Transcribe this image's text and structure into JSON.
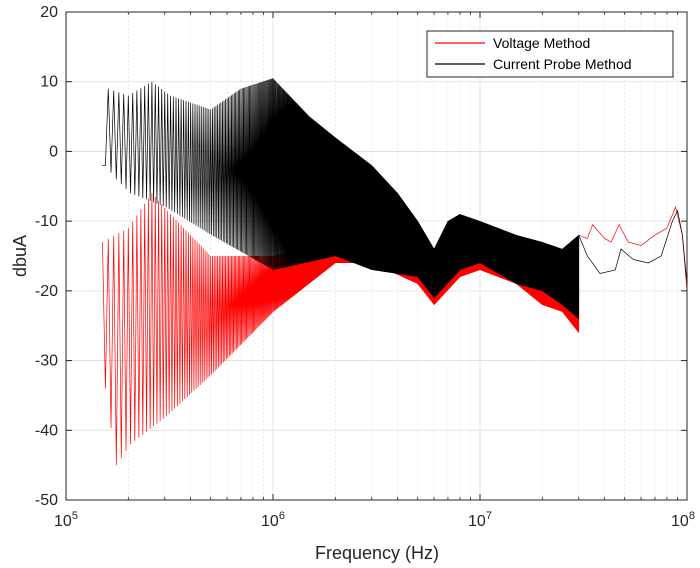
{
  "chart_data": {
    "type": "line",
    "title": "",
    "xlabel": "Frequency (Hz)",
    "ylabel": "dbuA",
    "xscale": "log",
    "xlim": [
      100000,
      100000000
    ],
    "ylim": [
      -50,
      20
    ],
    "grid": true,
    "legend_position": "top-right",
    "x_ticks": [
      {
        "value": 100000,
        "base": "10",
        "exp": "5"
      },
      {
        "value": 1000000,
        "base": "10",
        "exp": "6"
      },
      {
        "value": 10000000,
        "base": "10",
        "exp": "7"
      },
      {
        "value": 100000000,
        "base": "10",
        "exp": "8"
      }
    ],
    "y_ticks": [
      {
        "value": 20,
        "label": "20"
      },
      {
        "value": 10,
        "label": "10"
      },
      {
        "value": 0,
        "label": "0"
      },
      {
        "value": -10,
        "label": "-10"
      },
      {
        "value": -20,
        "label": "-20"
      },
      {
        "value": -30,
        "label": "-30"
      },
      {
        "value": -40,
        "label": "-40"
      },
      {
        "value": -50,
        "label": "-50"
      }
    ],
    "series": [
      {
        "name": "Voltage Method",
        "color": "#ff0000",
        "harmonic_start_hz": 150000,
        "harmonic_step_hz": 10000,
        "harmonic_end_hz": 30000000,
        "peaks": [
          [
            150000,
            -13
          ],
          [
            200000,
            -11
          ],
          [
            260000,
            -6
          ],
          [
            320000,
            -9
          ],
          [
            500000,
            -15
          ],
          [
            1000000,
            -15
          ],
          [
            2000000,
            -13
          ],
          [
            2500000,
            -13
          ],
          [
            3500000,
            -14
          ],
          [
            5000000,
            -17
          ],
          [
            6000000,
            -19
          ],
          [
            8000000,
            -15
          ],
          [
            10000000,
            -15
          ],
          [
            15000000,
            -16
          ],
          [
            20000000,
            -17
          ],
          [
            25000000,
            -18
          ],
          [
            30000000,
            -21
          ]
        ],
        "floor": [
          [
            150000,
            -34
          ],
          [
            170000,
            -45
          ],
          [
            200000,
            -42
          ],
          [
            300000,
            -38
          ],
          [
            500000,
            -32
          ],
          [
            1000000,
            -23
          ],
          [
            2000000,
            -16
          ],
          [
            3000000,
            -16
          ],
          [
            5000000,
            -19
          ],
          [
            6000000,
            -22
          ],
          [
            8000000,
            -18
          ],
          [
            10000000,
            -17
          ],
          [
            15000000,
            -19
          ],
          [
            20000000,
            -22
          ],
          [
            25000000,
            -23
          ],
          [
            30000000,
            -26
          ]
        ],
        "smooth": [
          [
            30000000,
            -12
          ],
          [
            33000000,
            -12.5
          ],
          [
            35000000,
            -10.5
          ],
          [
            40000000,
            -12.5
          ],
          [
            43000000,
            -13
          ],
          [
            47000000,
            -10.5
          ],
          [
            52000000,
            -13
          ],
          [
            60000000,
            -13.5
          ],
          [
            70000000,
            -12
          ],
          [
            80000000,
            -11
          ],
          [
            88000000,
            -8
          ],
          [
            95000000,
            -12
          ],
          [
            100000000,
            -20
          ]
        ]
      },
      {
        "name": "Current Probe Method",
        "color": "#000000",
        "harmonic_start_hz": 150000,
        "harmonic_step_hz": 10000,
        "harmonic_end_hz": 30000000,
        "peaks": [
          [
            150000,
            -2
          ],
          [
            160000,
            9
          ],
          [
            200000,
            8
          ],
          [
            260000,
            10
          ],
          [
            320000,
            8
          ],
          [
            500000,
            6
          ],
          [
            700000,
            9
          ],
          [
            1000000,
            10.5
          ],
          [
            1500000,
            5
          ],
          [
            2000000,
            2
          ],
          [
            3000000,
            -2
          ],
          [
            4000000,
            -6
          ],
          [
            5000000,
            -10
          ],
          [
            6000000,
            -14
          ],
          [
            7000000,
            -10
          ],
          [
            8000000,
            -9
          ],
          [
            10000000,
            -10
          ],
          [
            15000000,
            -12
          ],
          [
            20000000,
            -13
          ],
          [
            25000000,
            -14
          ],
          [
            30000000,
            -12
          ]
        ],
        "floor": [
          [
            150000,
            -2
          ],
          [
            170000,
            -4
          ],
          [
            200000,
            -6
          ],
          [
            300000,
            -8
          ],
          [
            500000,
            -12
          ],
          [
            1000000,
            -17
          ],
          [
            2000000,
            -15
          ],
          [
            3000000,
            -17
          ],
          [
            5000000,
            -18
          ],
          [
            6000000,
            -21
          ],
          [
            8000000,
            -17
          ],
          [
            10000000,
            -16
          ],
          [
            15000000,
            -19
          ],
          [
            20000000,
            -20
          ],
          [
            25000000,
            -22
          ],
          [
            30000000,
            -24
          ]
        ],
        "smooth": [
          [
            30000000,
            -12
          ],
          [
            33000000,
            -15
          ],
          [
            38000000,
            -17.5
          ],
          [
            45000000,
            -17
          ],
          [
            48000000,
            -14
          ],
          [
            55000000,
            -15.5
          ],
          [
            65000000,
            -16
          ],
          [
            75000000,
            -15
          ],
          [
            85000000,
            -10
          ],
          [
            90000000,
            -8.5
          ],
          [
            95000000,
            -12
          ],
          [
            100000000,
            -19
          ]
        ]
      }
    ]
  }
}
